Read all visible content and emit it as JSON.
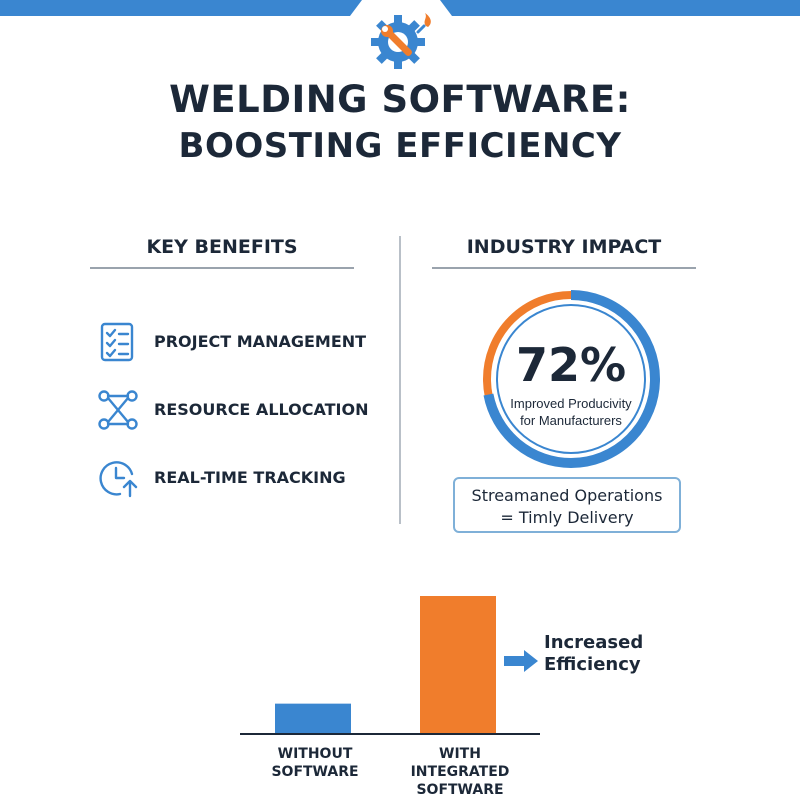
{
  "header": {
    "title_line1": "WELDING SOFTWARE:",
    "title_line2": "BOOSTING EFFICIENCY",
    "logo_icon": "gear-wrench-flame-icon"
  },
  "benefits": {
    "heading": "KEY BENEFITS",
    "items": [
      {
        "label": "PROJECT MANAGEMENT",
        "icon": "checklist-icon"
      },
      {
        "label": "RESOURCE ALLOCATION",
        "icon": "network-nodes-icon"
      },
      {
        "label": "REAL-TIME TRACKING",
        "icon": "clock-arrow-icon"
      }
    ]
  },
  "impact": {
    "heading": "INDUSTRY IMPACT",
    "stat_value": "72%",
    "stat_fraction": 0.72,
    "stat_caption_line1": "Improved Producivity",
    "stat_caption_line2": "for Manufacturers",
    "ops_line1": "Streamaned Operations",
    "ops_line2": "= Timly Delivery"
  },
  "chart_data": {
    "type": "bar",
    "categories": [
      "WITHOUT SOFTWARE",
      "WITH INTEGRATED SOFTWARE"
    ],
    "category_lines": [
      [
        "WITHOUT SOFTWARE"
      ],
      [
        "WITH INTEGRATED",
        "SOFTWARE"
      ]
    ],
    "values": [
      22,
      100
    ],
    "ylim": [
      0,
      100
    ],
    "annotation_line1": "Increased",
    "annotation_line2": "Efficiency",
    "grid": false
  },
  "colors": {
    "blue": "#3a86d0",
    "orange": "#f07d2c",
    "navy": "#1c2838"
  }
}
